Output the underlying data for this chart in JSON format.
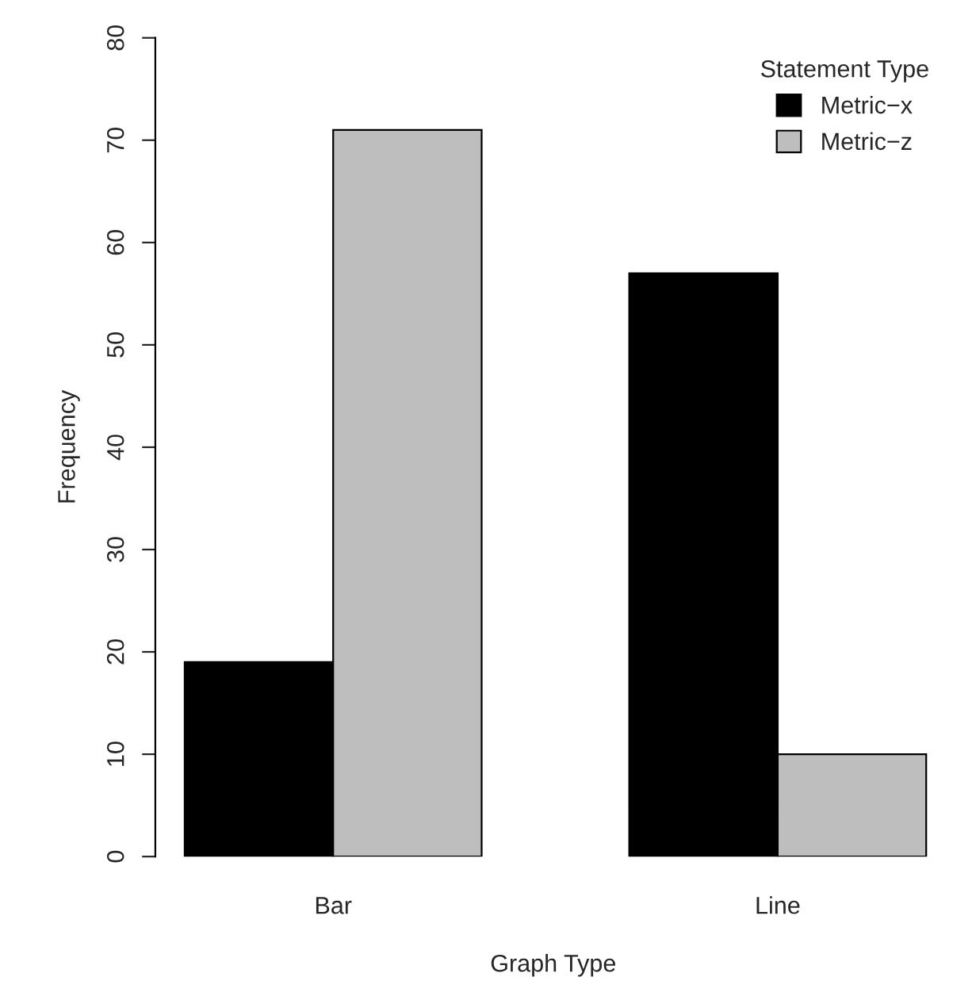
{
  "chart_data": {
    "type": "bar",
    "xlabel": "Graph Type",
    "ylabel": "Frequency",
    "legend_title": "Statement Type",
    "categories": [
      "Bar",
      "Line"
    ],
    "series": [
      {
        "name": "Metric−x",
        "color": "#000000",
        "values": [
          19,
          57
        ]
      },
      {
        "name": "Metric−z",
        "color": "#bebebe",
        "values": [
          71,
          10
        ]
      }
    ],
    "ylim": [
      0,
      80
    ],
    "yticks": [
      0,
      10,
      20,
      30,
      40,
      50,
      60,
      70,
      80
    ],
    "grid": false,
    "legend": "top right"
  }
}
